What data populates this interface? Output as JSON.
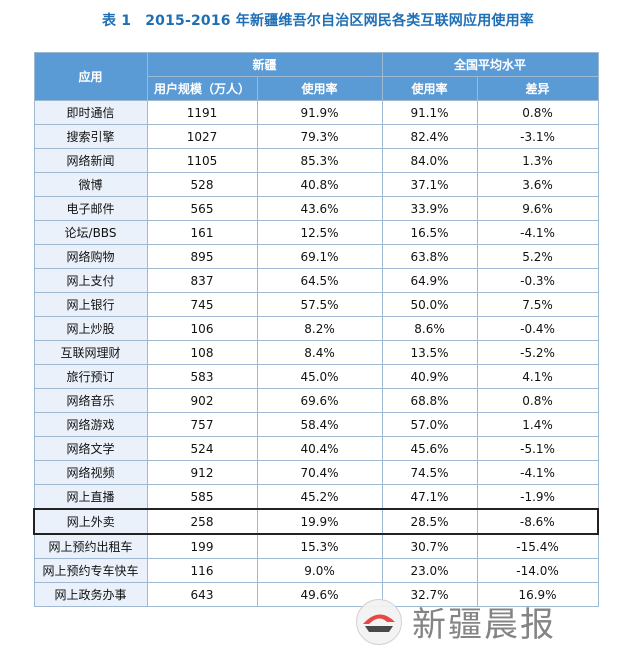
{
  "title": {
    "label": "表 1",
    "text": "2015-2016 年新疆维吾尔自治区网民各类互联网应用使用率"
  },
  "table": {
    "header": {
      "app": "应用",
      "group_xinjiang": "新疆",
      "group_national": "全国平均水平",
      "users": "用户规模（万人）",
      "rate": "使用率",
      "national_rate": "使用率",
      "diff": "差异"
    },
    "rows": [
      {
        "name": "即时通信",
        "users": "1191",
        "rate": "91.9%",
        "national": "91.1%",
        "diff": "0.8%"
      },
      {
        "name": "搜索引擎",
        "users": "1027",
        "rate": "79.3%",
        "national": "82.4%",
        "diff": "-3.1%"
      },
      {
        "name": "网络新闻",
        "users": "1105",
        "rate": "85.3%",
        "national": "84.0%",
        "diff": "1.3%"
      },
      {
        "name": "微博",
        "users": "528",
        "rate": "40.8%",
        "national": "37.1%",
        "diff": "3.6%"
      },
      {
        "name": "电子邮件",
        "users": "565",
        "rate": "43.6%",
        "national": "33.9%",
        "diff": "9.6%"
      },
      {
        "name": "论坛/BBS",
        "users": "161",
        "rate": "12.5%",
        "national": "16.5%",
        "diff": "-4.1%"
      },
      {
        "name": "网络购物",
        "users": "895",
        "rate": "69.1%",
        "national": "63.8%",
        "diff": "5.2%"
      },
      {
        "name": "网上支付",
        "users": "837",
        "rate": "64.5%",
        "national": "64.9%",
        "diff": "-0.3%"
      },
      {
        "name": "网上银行",
        "users": "745",
        "rate": "57.5%",
        "national": "50.0%",
        "diff": "7.5%"
      },
      {
        "name": "网上炒股",
        "users": "106",
        "rate": "8.2%",
        "national": "8.6%",
        "diff": "-0.4%"
      },
      {
        "name": "互联网理财",
        "users": "108",
        "rate": "8.4%",
        "national": "13.5%",
        "diff": "-5.2%"
      },
      {
        "name": "旅行预订",
        "users": "583",
        "rate": "45.0%",
        "national": "40.9%",
        "diff": "4.1%"
      },
      {
        "name": "网络音乐",
        "users": "902",
        "rate": "69.6%",
        "national": "68.8%",
        "diff": "0.8%"
      },
      {
        "name": "网络游戏",
        "users": "757",
        "rate": "58.4%",
        "national": "57.0%",
        "diff": "1.4%"
      },
      {
        "name": "网络文学",
        "users": "524",
        "rate": "40.4%",
        "national": "45.6%",
        "diff": "-5.1%"
      },
      {
        "name": "网络视频",
        "users": "912",
        "rate": "70.4%",
        "national": "74.5%",
        "diff": "-4.1%"
      },
      {
        "name": "网上直播",
        "users": "585",
        "rate": "45.2%",
        "national": "47.1%",
        "diff": "-1.9%"
      },
      {
        "name": "网上外卖",
        "users": "258",
        "rate": "19.9%",
        "national": "28.5%",
        "diff": "-8.6%"
      },
      {
        "name": "网上预约出租车",
        "users": "199",
        "rate": "15.3%",
        "national": "30.7%",
        "diff": "-15.4%"
      },
      {
        "name": "网上预约专车快车",
        "users": "116",
        "rate": "9.0%",
        "national": "23.0%",
        "diff": "-14.0%"
      },
      {
        "name": "网上政务办事",
        "users": "643",
        "rate": "49.6%",
        "national": "32.7%",
        "diff": "16.9%"
      }
    ]
  },
  "watermark": {
    "text": "新疆晨报"
  }
}
